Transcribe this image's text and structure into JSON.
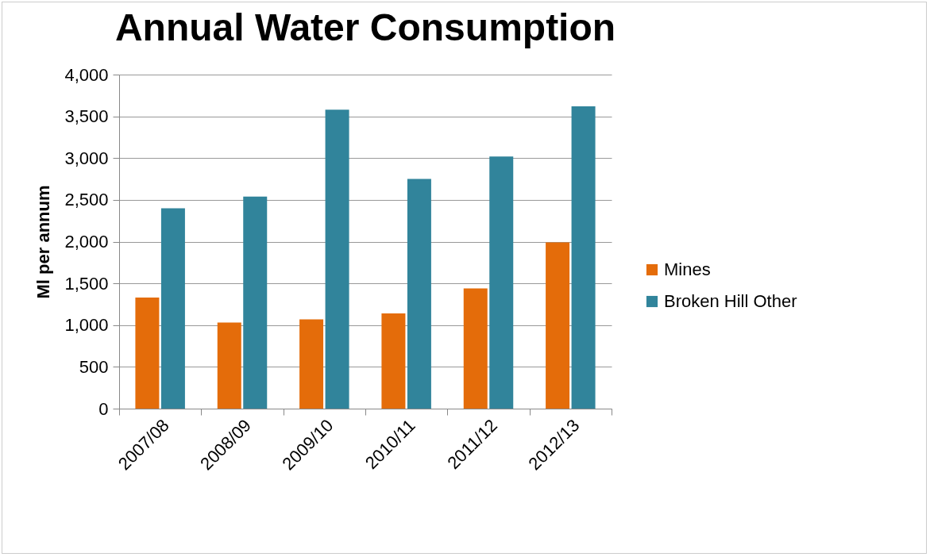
{
  "chart_data": {
    "type": "bar",
    "title": "Annual Water Consumption",
    "ylabel": "Ml per annum",
    "categories": [
      "2007/08",
      "2008/09",
      "2009/10",
      "2010/11",
      "2011/12",
      "2012/13"
    ],
    "series": [
      {
        "name": "Mines",
        "color": "#e46c0a",
        "values": [
          1330,
          1030,
          1070,
          1140,
          1440,
          1990
        ]
      },
      {
        "name": "Broken Hill Other",
        "color": "#31849b",
        "values": [
          2400,
          2540,
          3580,
          2750,
          3020,
          3620
        ]
      }
    ],
    "ylim": [
      0,
      4000
    ],
    "yticks": [
      0,
      500,
      {
        "value": 1000,
        "label": "1,000"
      },
      {
        "value": 1500,
        "label": "1,500"
      },
      {
        "value": 2000,
        "label": "2,000"
      },
      {
        "value": 2500,
        "label": "2,500"
      },
      {
        "value": 3000,
        "label": "3,000"
      },
      {
        "value": 3500,
        "label": "3,500"
      },
      {
        "value": 4000,
        "label": "4,000"
      }
    ],
    "grid": "y",
    "legend": "right"
  }
}
